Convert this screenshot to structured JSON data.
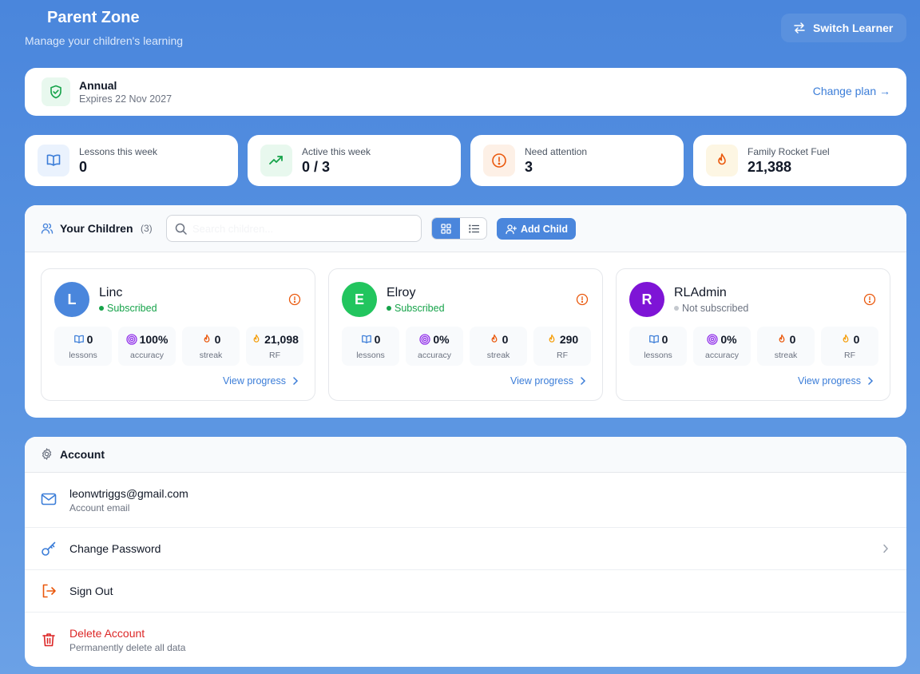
{
  "header": {
    "title": "Parent Zone",
    "subtitle": "Manage your children's learning",
    "switch_label": "Switch Learner"
  },
  "plan": {
    "name": "Annual",
    "expires": "Expires 22 Nov 2027",
    "change_label": "Change plan →"
  },
  "stats": [
    {
      "label": "Lessons this week",
      "value": "0",
      "icon": "book-icon",
      "color": "#3b7dd8",
      "bg": "#eaf2fd"
    },
    {
      "label": "Active this week",
      "value": "0 / 3",
      "icon": "trending-up-icon",
      "color": "#16a34a",
      "bg": "#e8f8ee"
    },
    {
      "label": "Need attention",
      "value": "3",
      "icon": "alert-icon",
      "color": "#ea580c",
      "bg": "#fdf0e6"
    },
    {
      "label": "Family Rocket Fuel",
      "value": "21,388",
      "icon": "flame-icon",
      "color": "#f59e0b",
      "bg": "#fdf6e3"
    }
  ],
  "children_section": {
    "title": "Your Children",
    "count": "(3)",
    "search_placeholder": "Search children...",
    "add_label": "Add Child"
  },
  "children": [
    {
      "initial": "L",
      "name": "Linc",
      "status": "Subscribed",
      "avatar_color": "#4a86dc",
      "status_color": "#16a34a",
      "metrics": {
        "lessons": "0",
        "accuracy": "100%",
        "streak": "0",
        "rf": "21,098"
      },
      "view_label": "View progress"
    },
    {
      "initial": "E",
      "name": "Elroy",
      "status": "Subscribed",
      "avatar_color": "#22c55e",
      "status_color": "#16a34a",
      "metrics": {
        "lessons": "0",
        "accuracy": "0%",
        "streak": "0",
        "rf": "290"
      },
      "view_label": "View progress"
    },
    {
      "initial": "R",
      "name": "RLAdmin",
      "status": "Not subscribed",
      "avatar_color": "#7e14d6",
      "status_color": "#6b7280",
      "metrics": {
        "lessons": "0",
        "accuracy": "0%",
        "streak": "0",
        "rf": "0"
      },
      "view_label": "View progress"
    }
  ],
  "metric_labels": {
    "lessons": "lessons",
    "accuracy": "accuracy",
    "streak": "streak",
    "rf": "RF"
  },
  "account": {
    "title": "Account",
    "email": "leonwtriggs@gmail.com",
    "email_label": "Account email",
    "change_password": "Change Password",
    "sign_out": "Sign Out",
    "delete": "Delete Account",
    "delete_sub": "Permanently delete all data"
  }
}
